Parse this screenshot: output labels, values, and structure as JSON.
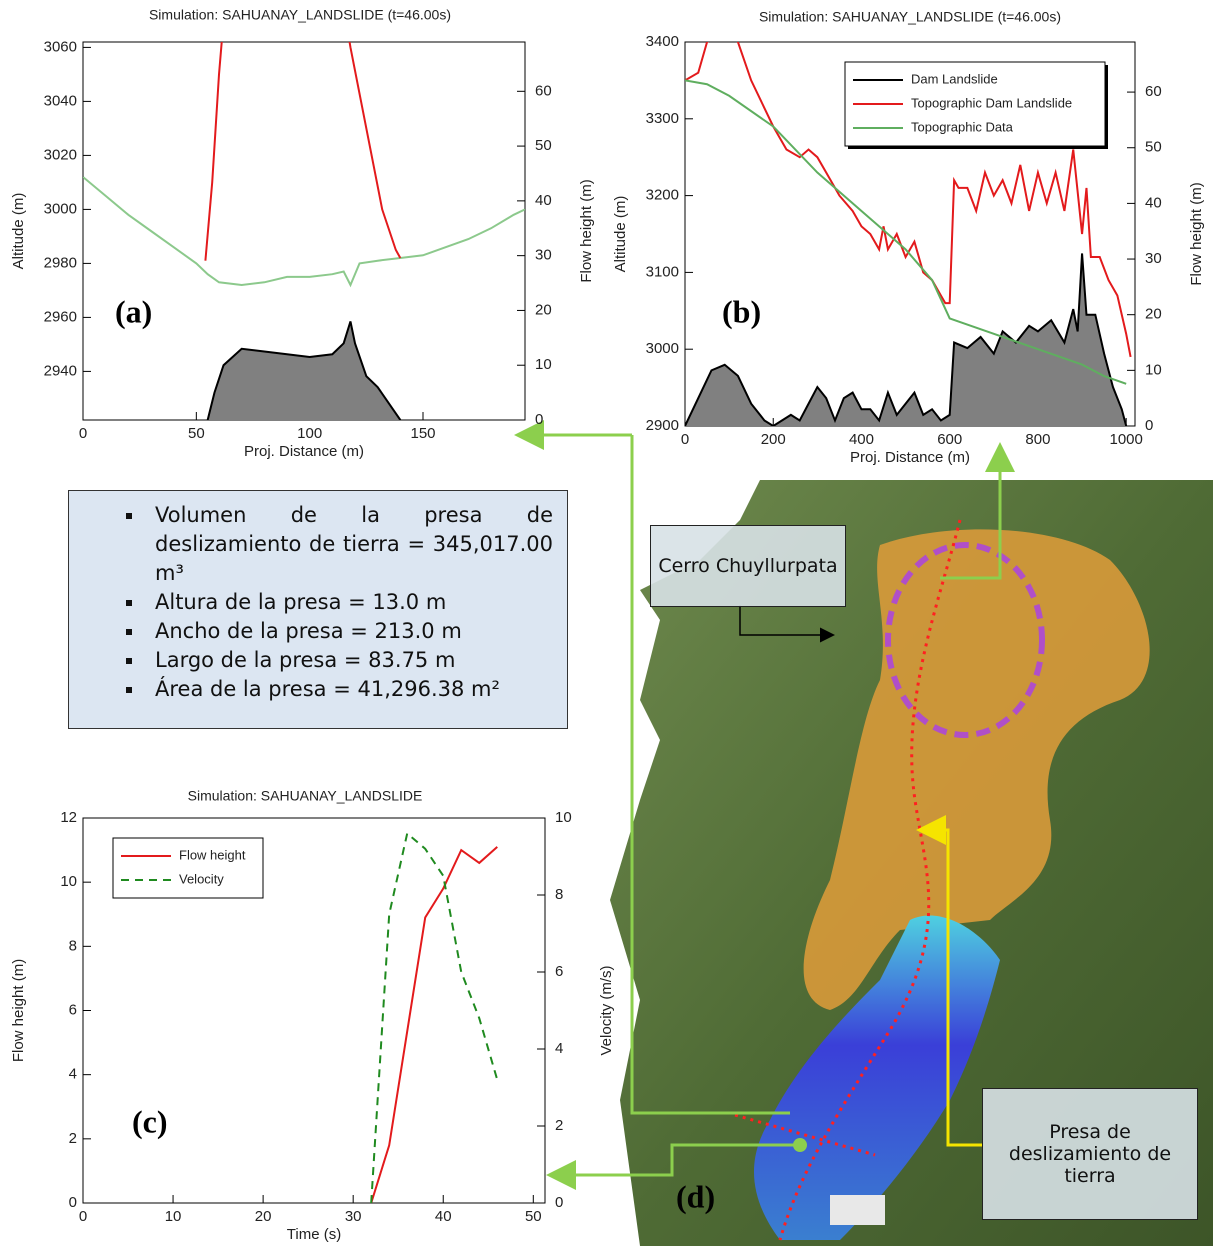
{
  "chart_data": [
    {
      "type": "line",
      "title": "Simulation: SAHUANAY_LANDSLIDE  (t=46.00s)",
      "panel_label": "(a)",
      "xlabel": "Proj. Distance (m)",
      "ylabel": "Altitude (m)",
      "y2label": "Flow height (m)",
      "xlim": [
        0,
        195
      ],
      "xticks": [
        0,
        50,
        100,
        150
      ],
      "ylim": [
        2922,
        3062
      ],
      "yticks": [
        2940,
        2960,
        2980,
        3000,
        3020,
        3040,
        3060
      ],
      "y2lim": [
        0,
        69
      ],
      "y2ticks": [
        0,
        10,
        20,
        30,
        40,
        50,
        60
      ],
      "series": [
        {
          "color": "#8cc98c",
          "x": [
            0,
            10,
            20,
            30,
            40,
            50,
            55,
            60,
            70,
            80,
            90,
            100,
            110,
            115,
            118,
            122,
            130,
            140,
            150,
            160,
            170,
            180,
            190,
            195
          ],
          "values": [
            3012,
            3005,
            2998,
            2992,
            2986,
            2980,
            2976,
            2973,
            2972,
            2973,
            2975,
            2975,
            2976,
            2977,
            2972,
            2980,
            2981,
            2982,
            2983,
            2986,
            2989,
            2993,
            2998,
            3000
          ]
        },
        {
          "color": "#e31a1c",
          "x": [
            54,
            57,
            60,
            62,
            90,
            116,
            118,
            125,
            132,
            138,
            140
          ],
          "values": [
            2981,
            3010,
            3050,
            3070,
            null,
            3070,
            3060,
            3030,
            3000,
            2985,
            2982
          ]
        },
        {
          "color": "#000000",
          "fill": "#808080",
          "axis": "y2",
          "x": [
            55,
            58,
            62,
            70,
            80,
            90,
            100,
            110,
            115,
            118,
            120,
            125,
            130,
            135,
            140
          ],
          "values": [
            0,
            5,
            10,
            13,
            12.5,
            12,
            11.5,
            12,
            14,
            18,
            14,
            8,
            6,
            3,
            0
          ]
        }
      ]
    },
    {
      "type": "line",
      "title": "Simulation: SAHUANAY_LANDSLIDE  (t=46.00s)",
      "panel_label": "(b)",
      "xlabel": "Proj. Distance (m)",
      "ylabel": "Altitude (m)",
      "y2label": "Flow height (m)",
      "xlim": [
        0,
        1020
      ],
      "xticks": [
        0,
        200,
        400,
        600,
        800,
        1000
      ],
      "ylim": [
        2900,
        3400
      ],
      "yticks": [
        2900,
        3000,
        3100,
        3200,
        3300,
        3400
      ],
      "y2lim": [
        0,
        69
      ],
      "y2ticks": [
        0,
        10,
        20,
        30,
        40,
        50,
        60
      ],
      "legend": "upper right",
      "series": [
        {
          "name": "Dam Landslide",
          "color": "#000000",
          "fill": "#808080",
          "axis": "y2",
          "x": [
            0,
            30,
            60,
            90,
            120,
            150,
            180,
            200,
            240,
            260,
            280,
            300,
            320,
            340,
            360,
            380,
            400,
            420,
            440,
            460,
            480,
            500,
            520,
            540,
            560,
            580,
            600,
            610,
            640,
            670,
            700,
            720,
            750,
            780,
            800,
            830,
            860,
            880,
            890,
            900,
            910,
            930,
            950,
            970,
            990,
            1000
          ],
          "values": [
            0,
            5,
            10,
            11,
            9,
            4,
            1,
            0,
            2,
            1,
            4,
            7,
            5,
            1,
            5,
            6,
            3,
            3,
            1,
            6,
            2,
            4,
            6,
            2,
            3,
            1,
            2,
            15,
            14,
            16,
            13,
            17,
            15,
            18,
            17,
            19,
            15,
            21,
            17,
            31,
            20,
            20,
            13,
            7,
            3,
            0
          ]
        },
        {
          "name": "Topographic Dam Landslide",
          "color": "#e31a1c",
          "x": [
            0,
            30,
            50,
            100,
            120,
            150,
            200,
            230,
            260,
            280,
            300,
            320,
            350,
            380,
            400,
            420,
            440,
            450,
            460,
            480,
            500,
            520,
            540,
            560,
            580,
            590,
            600,
            610,
            620,
            640,
            660,
            680,
            700,
            720,
            740,
            760,
            780,
            800,
            820,
            840,
            860,
            880,
            900,
            910,
            920,
            940,
            960,
            980,
            1000,
            1010
          ],
          "values": [
            3350,
            3360,
            3400,
            3420,
            3400,
            3350,
            3290,
            3260,
            3250,
            3260,
            3250,
            3230,
            3200,
            3180,
            3160,
            3150,
            3130,
            3160,
            3130,
            3150,
            3120,
            3140,
            3100,
            3090,
            3070,
            3060,
            3060,
            3220,
            3210,
            3210,
            3180,
            3230,
            3200,
            3220,
            3190,
            3240,
            3180,
            3230,
            3190,
            3230,
            3180,
            3260,
            3150,
            3210,
            3120,
            3120,
            3090,
            3070,
            3020,
            2990
          ]
        },
        {
          "name": "Topographic Data",
          "color": "#5fae5f",
          "x": [
            0,
            50,
            100,
            200,
            300,
            400,
            500,
            560,
            600,
            700,
            800,
            900,
            950,
            1000
          ],
          "values": [
            3350,
            3345,
            3330,
            3290,
            3230,
            3180,
            3130,
            3090,
            3040,
            3020,
            3000,
            2980,
            2965,
            2955
          ]
        }
      ]
    },
    {
      "type": "line",
      "title": "Simulation: SAHUANAY_LANDSLIDE",
      "panel_label": "(c)",
      "xlabel": "Time (s)",
      "ylabel": "Flow height (m)",
      "y2label": "Velocity (m/s)",
      "xlim": [
        0,
        51.3
      ],
      "xticks": [
        0,
        10,
        20,
        30,
        40,
        50
      ],
      "ylim": [
        0,
        12
      ],
      "yticks": [
        0,
        2,
        4,
        6,
        8,
        10,
        12
      ],
      "y2lim": [
        0,
        10
      ],
      "y2ticks": [
        0,
        2,
        4,
        6,
        8,
        10
      ],
      "legend": "upper left",
      "series": [
        {
          "name": "Flow height",
          "color": "#e31a1c",
          "x": [
            32,
            34,
            38,
            40,
            42,
            44,
            46
          ],
          "values": [
            0,
            1.8,
            8.9,
            9.8,
            11,
            10.6,
            11.1
          ]
        },
        {
          "name": "Velocity",
          "color": "#1f8a1f",
          "line_style": "dashed",
          "axis": "y2",
          "x": [
            32,
            34,
            36,
            38,
            40,
            42,
            44,
            46
          ],
          "values": [
            0,
            7.5,
            9.6,
            9.2,
            8.5,
            6,
            4.8,
            3.2
          ]
        }
      ]
    }
  ],
  "info_box": {
    "items": [
      "Volumen de la presa de deslizamiento de tierra = 345,017.00 m³",
      "Altura de la presa = 13.0 m",
      "Ancho de la presa = 213.0 m",
      "Largo de la presa = 83.75 m",
      "Área de la presa = 41,296.38 m²"
    ]
  },
  "map": {
    "label": "(d)",
    "annotations": [
      "Cerro Chuyllurpata",
      "Presa de deslizamiento de tierra"
    ]
  }
}
